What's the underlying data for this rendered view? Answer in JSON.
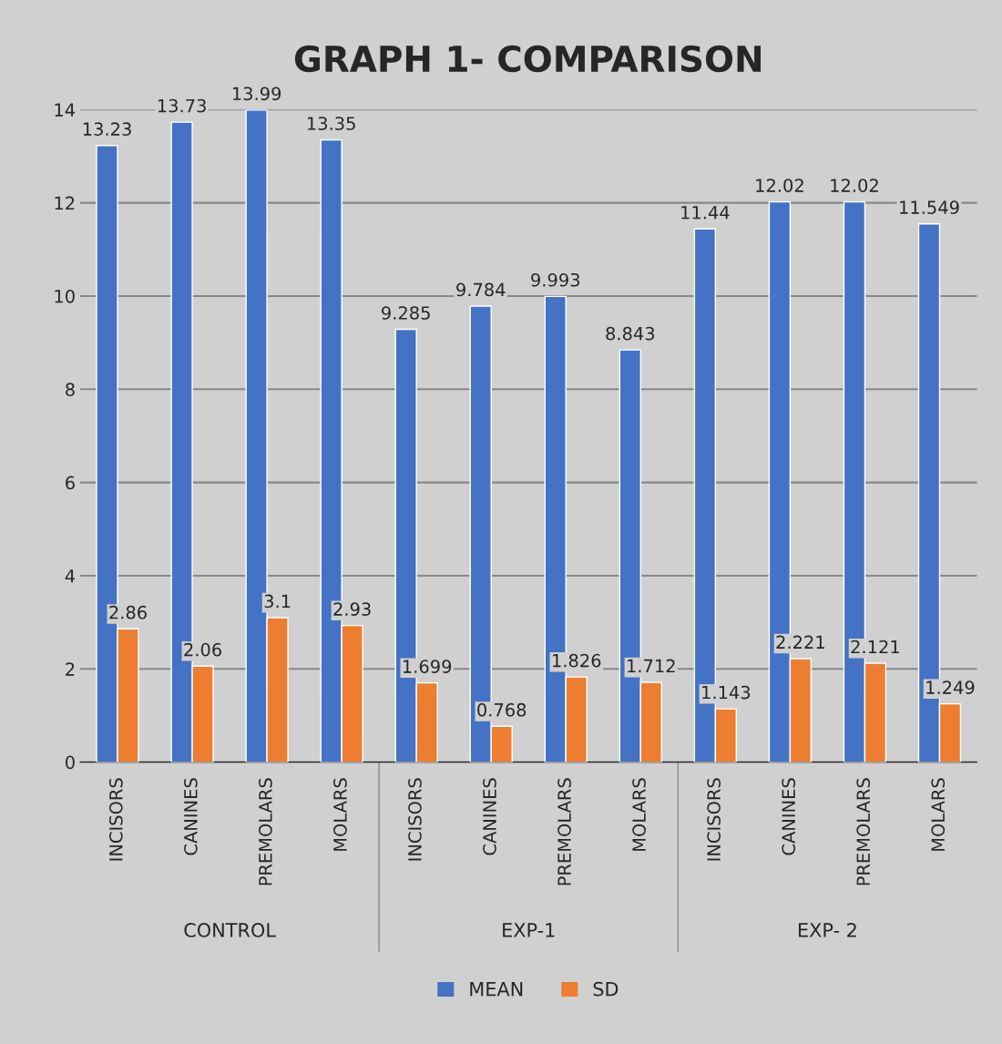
{
  "chart_data": {
    "type": "bar",
    "title": "GRAPH 1- COMPARISON",
    "categories": [
      "INCISORS",
      "CANINES",
      "PREMOLARS",
      "MOLARS",
      "INCISORS",
      "CANINES",
      "PREMOLARS",
      "MOLARS",
      "INCISORS",
      "CANINES",
      "PREMOLARS",
      "MOLARS"
    ],
    "series": [
      {
        "name": "MEAN",
        "color": "#4472c4",
        "values": [
          13.23,
          13.73,
          13.99,
          13.35,
          9.285,
          9.784,
          9.993,
          8.843,
          11.44,
          12.02,
          12.02,
          11.549
        ]
      },
      {
        "name": "SD",
        "color": "#ed7d31",
        "values": [
          2.86,
          2.06,
          3.1,
          2.93,
          1.699,
          0.768,
          1.826,
          1.712,
          1.143,
          2.221,
          2.121,
          1.249
        ]
      }
    ],
    "annotations": [
      "CONTROL",
      "EXP-1",
      "EXP- 2"
    ],
    "ylim": [
      0,
      14
    ],
    "yticks": [
      0,
      2,
      4,
      6,
      8,
      10,
      12,
      14
    ],
    "grid": "y",
    "legend": "bottom",
    "data_labels": true
  }
}
